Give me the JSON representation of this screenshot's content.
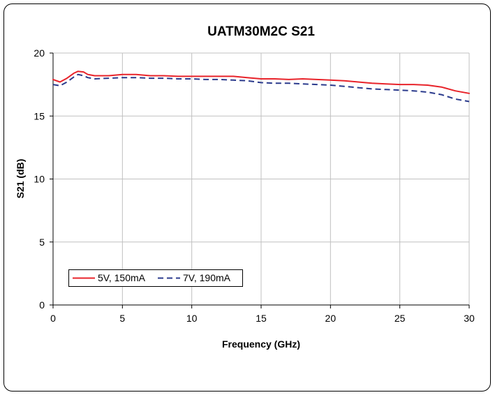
{
  "chart_data": {
    "type": "line",
    "title": "UATM30M2C S21",
    "xlabel": "Frequency (GHz)",
    "ylabel": "S21 (dB)",
    "xlim": [
      0,
      30
    ],
    "ylim": [
      0,
      20
    ],
    "x_ticks": [
      "0",
      "5",
      "10",
      "15",
      "20",
      "25",
      "30"
    ],
    "y_ticks": [
      "0",
      "5",
      "10",
      "15",
      "20"
    ],
    "grid": true,
    "legend_position": "bottom-left",
    "series": [
      {
        "name": "5V, 150mA",
        "color": "#e8232a",
        "style": "solid",
        "x": [
          0,
          0.5,
          1,
          1.5,
          1.8,
          2.2,
          2.5,
          3,
          4,
          5,
          6,
          7,
          8,
          9,
          10,
          11,
          12,
          13,
          14,
          15,
          16,
          17,
          18,
          19,
          20,
          21,
          22,
          23,
          24,
          25,
          26,
          27,
          28,
          29,
          30
        ],
        "values": [
          17.9,
          17.7,
          18.0,
          18.4,
          18.55,
          18.5,
          18.3,
          18.2,
          18.2,
          18.3,
          18.3,
          18.2,
          18.2,
          18.15,
          18.15,
          18.15,
          18.15,
          18.15,
          18.05,
          17.95,
          17.95,
          17.9,
          17.95,
          17.9,
          17.85,
          17.8,
          17.7,
          17.6,
          17.55,
          17.5,
          17.5,
          17.45,
          17.3,
          17.0,
          16.8
        ]
      },
      {
        "name": "7V, 190mA",
        "color": "#2a3a8c",
        "style": "dashed",
        "x": [
          0,
          0.5,
          1,
          1.5,
          1.8,
          2.2,
          2.5,
          3,
          4,
          5,
          6,
          7,
          8,
          9,
          10,
          11,
          12,
          13,
          14,
          15,
          16,
          17,
          18,
          19,
          20,
          21,
          22,
          23,
          24,
          25,
          26,
          27,
          28,
          29,
          30
        ],
        "values": [
          17.5,
          17.4,
          17.7,
          18.1,
          18.3,
          18.2,
          18.05,
          17.95,
          18.0,
          18.05,
          18.05,
          18.0,
          18.0,
          17.95,
          17.95,
          17.9,
          17.9,
          17.85,
          17.8,
          17.65,
          17.6,
          17.6,
          17.55,
          17.5,
          17.45,
          17.35,
          17.25,
          17.15,
          17.1,
          17.05,
          17.0,
          16.9,
          16.7,
          16.35,
          16.15
        ]
      }
    ]
  }
}
